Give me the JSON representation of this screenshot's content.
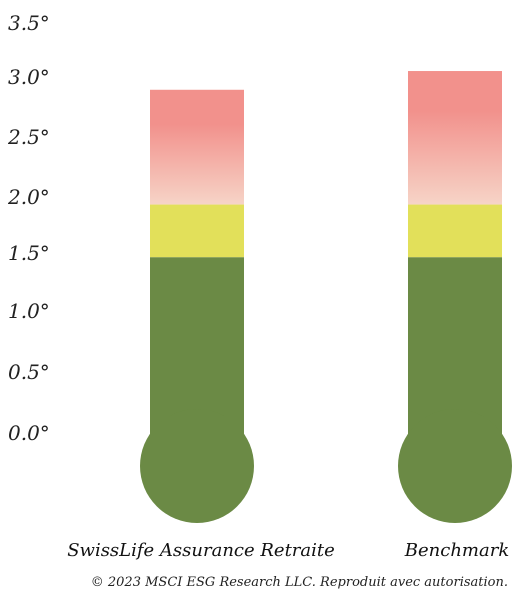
{
  "chart_data": {
    "type": "bar",
    "categories": [
      "SwissLife Assurance Retraite",
      "Benchmark"
    ],
    "values": [
      2.93,
      3.09
    ],
    "ylim": [
      0,
      3.5
    ],
    "yticks": [
      "0.0°",
      "0.5°",
      "1.0°",
      "1.5°",
      "2.0°",
      "2.5°",
      "3.0°",
      "3.5°"
    ],
    "ytick_values": [
      0,
      0.5,
      1.0,
      1.5,
      2.0,
      2.5,
      3.0,
      3.5
    ],
    "bands": [
      {
        "from": 0,
        "to": 1.5,
        "color": "#6b8a45"
      },
      {
        "from": 1.5,
        "to": 1.95,
        "color": "#e2e05a"
      },
      {
        "from": 1.95,
        "to": 3.5,
        "color_top": "#f2918c",
        "color_bottom": "#f6d4c7"
      }
    ],
    "footnote": "© 2023 MSCI ESG Research LLC. Reproduit avec autorisation."
  }
}
